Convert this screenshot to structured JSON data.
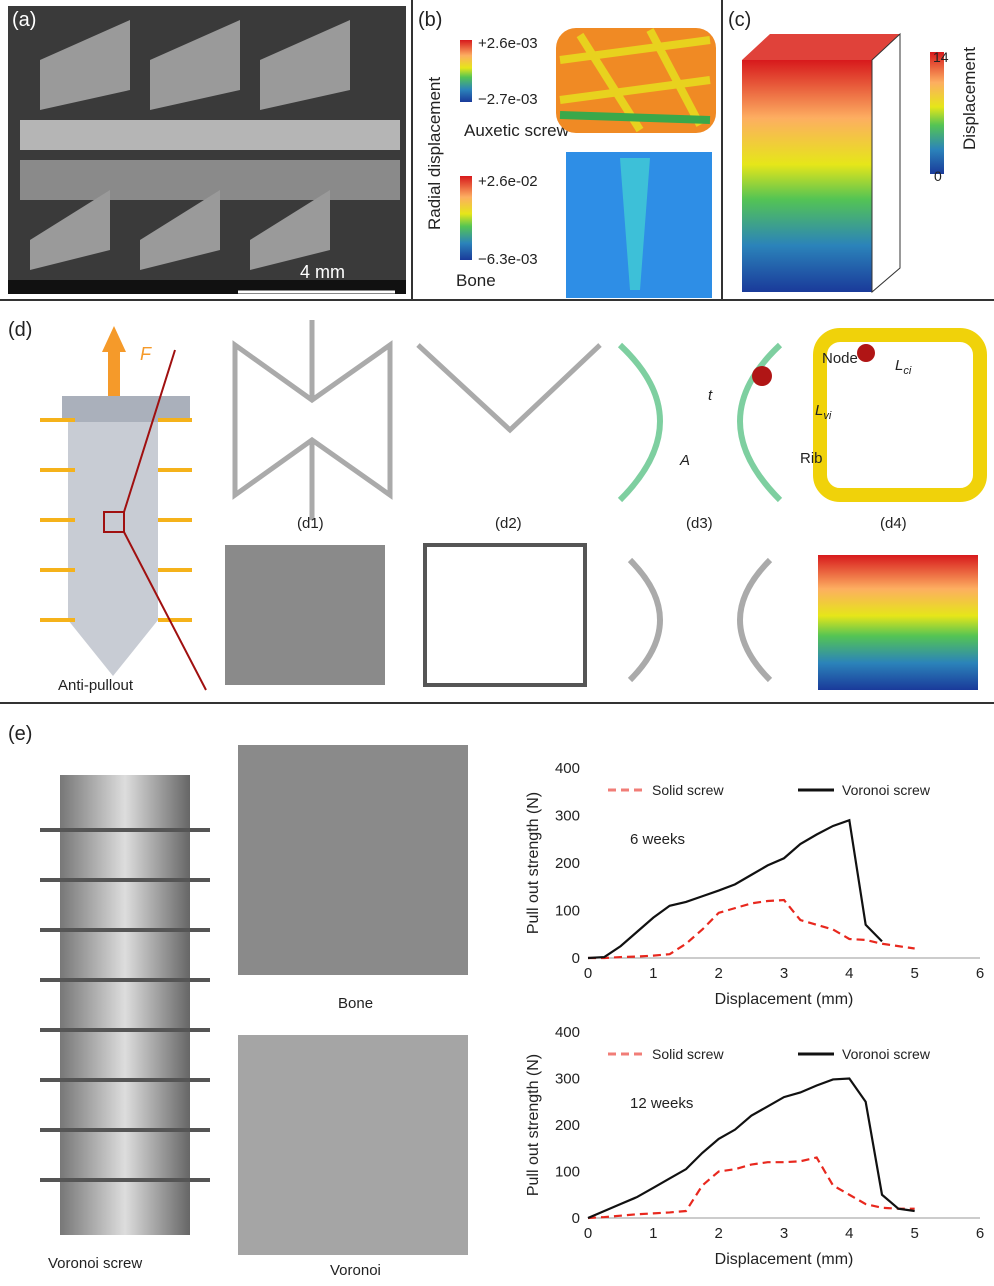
{
  "panels": {
    "a": {
      "label": "(a)",
      "scale_bar": "4 mm"
    },
    "b": {
      "label": "(b)",
      "axis_title": "Radial displacement",
      "screw_max": "+2.6e-03",
      "screw_min": "−2.7e-03",
      "screw_name": "Auxetic screw",
      "bone_max": "+2.6e-02",
      "bone_min": "−6.3e-03",
      "bone_name": "Bone"
    },
    "c": {
      "label": "(c)",
      "max": "14",
      "min": "0",
      "title": "Displacement"
    },
    "d": {
      "label": "(d)",
      "force": "F",
      "caption": "Anti-pullout",
      "d1": "(d1)",
      "d2": "(d2)",
      "d3": "(d3)",
      "d4": "(d4)",
      "t": "t",
      "A": "A",
      "node": "Node",
      "rib": "Rib",
      "lci": {
        "main": "L",
        "sub": "ci"
      },
      "lvi": {
        "main": "L",
        "sub": "vi"
      }
    },
    "e": {
      "label": "(e)",
      "screw": "Voronoi screw",
      "bone": "Bone",
      "voronoi": "Voronoi"
    }
  },
  "chart_data": [
    {
      "type": "line",
      "annotation": "6 weeks",
      "xlabel": "Displacement (mm)",
      "ylabel": "Pull out strength (N)",
      "x": [
        0,
        0.25,
        0.5,
        0.75,
        1,
        1.25,
        1.5,
        1.75,
        2,
        2.25,
        2.5,
        2.75,
        3,
        3.25,
        3.5,
        3.75,
        4,
        4.25,
        4.5,
        4.75,
        5
      ],
      "series": [
        {
          "name": "Solid screw",
          "color": "#e8281e",
          "style": "dashed",
          "values": [
            0,
            0,
            2,
            3,
            5,
            8,
            30,
            60,
            95,
            105,
            115,
            120,
            122,
            80,
            70,
            60,
            40,
            38,
            30,
            25,
            20
          ]
        },
        {
          "name": "Voronoi screw",
          "color": "#111111",
          "style": "solid",
          "values": [
            0,
            2,
            25,
            55,
            85,
            110,
            118,
            130,
            142,
            155,
            175,
            195,
            210,
            240,
            260,
            278,
            290,
            70,
            35,
            null,
            null
          ]
        }
      ],
      "xlim": [
        0,
        6
      ],
      "xticks": [
        0,
        1,
        2,
        3,
        4,
        5,
        6
      ],
      "ylim": [
        0,
        400
      ],
      "yticks": [
        0,
        100,
        200,
        300,
        400
      ]
    },
    {
      "type": "line",
      "annotation": "12 weeks",
      "xlabel": "Displacement (mm)",
      "ylabel": "Pull out strength (N)",
      "x": [
        0,
        0.25,
        0.5,
        0.75,
        1,
        1.25,
        1.5,
        1.75,
        2,
        2.25,
        2.5,
        2.75,
        3,
        3.25,
        3.5,
        3.75,
        4,
        4.25,
        4.5,
        4.75,
        5
      ],
      "series": [
        {
          "name": "Solid screw",
          "color": "#e8281e",
          "style": "dashed",
          "values": [
            0,
            2,
            5,
            8,
            10,
            12,
            15,
            70,
            100,
            105,
            115,
            120,
            120,
            122,
            130,
            70,
            50,
            30,
            22,
            20,
            20
          ]
        },
        {
          "name": "Voronoi screw",
          "color": "#111111",
          "style": "solid",
          "values": [
            0,
            15,
            30,
            45,
            65,
            85,
            105,
            140,
            170,
            190,
            220,
            240,
            260,
            270,
            285,
            298,
            300,
            250,
            50,
            20,
            15
          ]
        }
      ],
      "xlim": [
        0,
        6
      ],
      "xticks": [
        0,
        1,
        2,
        3,
        4,
        5,
        6
      ],
      "ylim": [
        0,
        400
      ],
      "yticks": [
        0,
        100,
        200,
        300,
        400
      ]
    }
  ]
}
